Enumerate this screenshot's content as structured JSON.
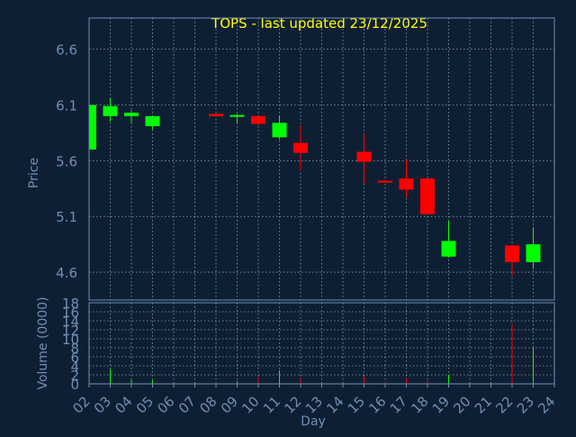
{
  "colors": {
    "background": "#0f1f33",
    "axis": "#6f8fb5",
    "grid": "#c8d3e0",
    "title": "#ffff00",
    "up": "#00ff00",
    "down": "#ff0000"
  },
  "chart_data": {
    "title": "TOPS - last updated 23/12/2025",
    "type": "candlestick",
    "xlabel": "Day",
    "days": [
      "02",
      "03",
      "04",
      "05",
      "06",
      "07",
      "08",
      "09",
      "10",
      "11",
      "12",
      "13",
      "14",
      "15",
      "16",
      "17",
      "18",
      "19",
      "20",
      "21",
      "22",
      "23",
      "24"
    ],
    "price": {
      "ylabel": "Price",
      "ylim": [
        4.35,
        6.88
      ],
      "yticks": [
        "6.6",
        "6.1",
        "5.6",
        "5.1",
        "4.6"
      ],
      "candles": [
        {
          "day": "02",
          "open": 5.7,
          "high": 6.1,
          "low": 5.67,
          "close": 6.1,
          "dir": "up"
        },
        {
          "day": "03",
          "open": 6.0,
          "high": 6.16,
          "low": 5.95,
          "close": 6.09,
          "dir": "up"
        },
        {
          "day": "04",
          "open": 6.0,
          "high": 6.05,
          "low": 5.93,
          "close": 6.03,
          "dir": "up"
        },
        {
          "day": "05",
          "open": 5.91,
          "high": 6.0,
          "low": 5.88,
          "close": 6.0,
          "dir": "up"
        },
        {
          "day": "08",
          "open": 6.02,
          "high": 6.02,
          "low": 6.0,
          "close": 6.0,
          "dir": "down"
        },
        {
          "day": "09",
          "open": 6.0,
          "high": 6.02,
          "low": 5.93,
          "close": 6.01,
          "dir": "up"
        },
        {
          "day": "10",
          "open": 6.0,
          "high": 6.0,
          "low": 5.92,
          "close": 5.93,
          "dir": "down"
        },
        {
          "day": "11",
          "open": 5.81,
          "high": 6.0,
          "low": 5.79,
          "close": 5.94,
          "dir": "up"
        },
        {
          "day": "12",
          "open": 5.76,
          "high": 5.92,
          "low": 5.51,
          "close": 5.67,
          "dir": "down"
        },
        {
          "day": "15",
          "open": 5.68,
          "high": 5.84,
          "low": 5.39,
          "close": 5.59,
          "dir": "down"
        },
        {
          "day": "16",
          "open": 5.42,
          "high": 5.43,
          "low": 5.4,
          "close": 5.41,
          "dir": "down"
        },
        {
          "day": "17",
          "open": 5.44,
          "high": 5.61,
          "low": 5.27,
          "close": 5.34,
          "dir": "down"
        },
        {
          "day": "18",
          "open": 5.44,
          "high": 5.44,
          "low": 5.12,
          "close": 5.12,
          "dir": "down"
        },
        {
          "day": "19",
          "open": 4.74,
          "high": 5.06,
          "low": 4.73,
          "close": 4.88,
          "dir": "up"
        },
        {
          "day": "22",
          "open": 4.84,
          "high": 4.84,
          "low": 4.56,
          "close": 4.69,
          "dir": "down"
        },
        {
          "day": "23",
          "open": 4.69,
          "high": 5.0,
          "low": 4.63,
          "close": 4.85,
          "dir": "up"
        }
      ]
    },
    "volume": {
      "ylabel": "Volume (0000)",
      "ylim": [
        0,
        18
      ],
      "yticks": [
        "18",
        "16",
        "14",
        "12",
        "10",
        "8",
        "6",
        "4",
        "2",
        "0"
      ],
      "bars": [
        {
          "day": "02",
          "value": 0.5,
          "dir": "up"
        },
        {
          "day": "03",
          "value": 3.2,
          "dir": "up"
        },
        {
          "day": "04",
          "value": 1.0,
          "dir": "up"
        },
        {
          "day": "05",
          "value": 0.8,
          "dir": "up"
        },
        {
          "day": "08",
          "value": 0.3,
          "dir": "down"
        },
        {
          "day": "09",
          "value": 0.6,
          "dir": "up"
        },
        {
          "day": "10",
          "value": 1.5,
          "dir": "down"
        },
        {
          "day": "11",
          "value": 3.0,
          "dir": "up"
        },
        {
          "day": "12",
          "value": 1.4,
          "dir": "down"
        },
        {
          "day": "15",
          "value": 1.7,
          "dir": "down"
        },
        {
          "day": "16",
          "value": 0.3,
          "dir": "down"
        },
        {
          "day": "17",
          "value": 1.2,
          "dir": "down"
        },
        {
          "day": "18",
          "value": 0.7,
          "dir": "down"
        },
        {
          "day": "19",
          "value": 2.0,
          "dir": "up"
        },
        {
          "day": "22",
          "value": 13.3,
          "dir": "down"
        },
        {
          "day": "23",
          "value": 8.0,
          "dir": "up"
        }
      ]
    }
  }
}
